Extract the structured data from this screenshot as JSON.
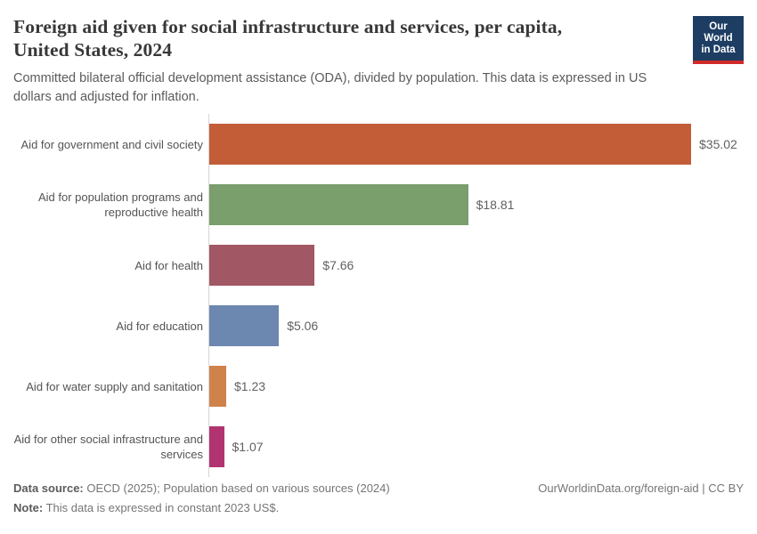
{
  "header": {
    "title_line1": "Foreign aid given for social infrastructure and services, per capita,",
    "title_line2": "United States, 2024",
    "subtitle": "Committed bilateral official development assistance (ODA), divided by population. This data is expressed in US dollars and adjusted for inflation."
  },
  "logo": {
    "line1": "Our World",
    "line2": "in Data",
    "bg_color": "#1d3d63",
    "accent_color": "#d12a2a"
  },
  "chart_data": {
    "type": "bar",
    "orientation": "horizontal",
    "title": "Foreign aid given for social infrastructure and services, per capita, United States, 2024",
    "categories": [
      "Aid for government and civil society",
      "Aid for population programs and reproductive health",
      "Aid for health",
      "Aid for education",
      "Aid for water supply and sanitation",
      "Aid for other social infrastructure and services"
    ],
    "values": [
      35.02,
      18.81,
      7.66,
      5.06,
      1.23,
      1.07
    ],
    "value_labels": [
      "$35.02",
      "$18.81",
      "$7.66",
      "$5.06",
      "$1.23",
      "$1.07"
    ],
    "colors": [
      "#c25d38",
      "#7a9e6c",
      "#a15764",
      "#6c87b0",
      "#d0824b",
      "#b13470"
    ],
    "unit": "constant 2023 US$",
    "xlim": [
      0,
      35.02
    ],
    "grid": false,
    "legend": "none",
    "axis_line_color": "#d6d6d6"
  },
  "footer": {
    "datasource_label": "Data source:",
    "datasource_text": " OECD (2025); Population based on various sources (2024)",
    "note_label": "Note:",
    "note_text": " This data is expressed in constant 2023 US$.",
    "citation": "OurWorldinData.org/foreign-aid | CC BY"
  }
}
